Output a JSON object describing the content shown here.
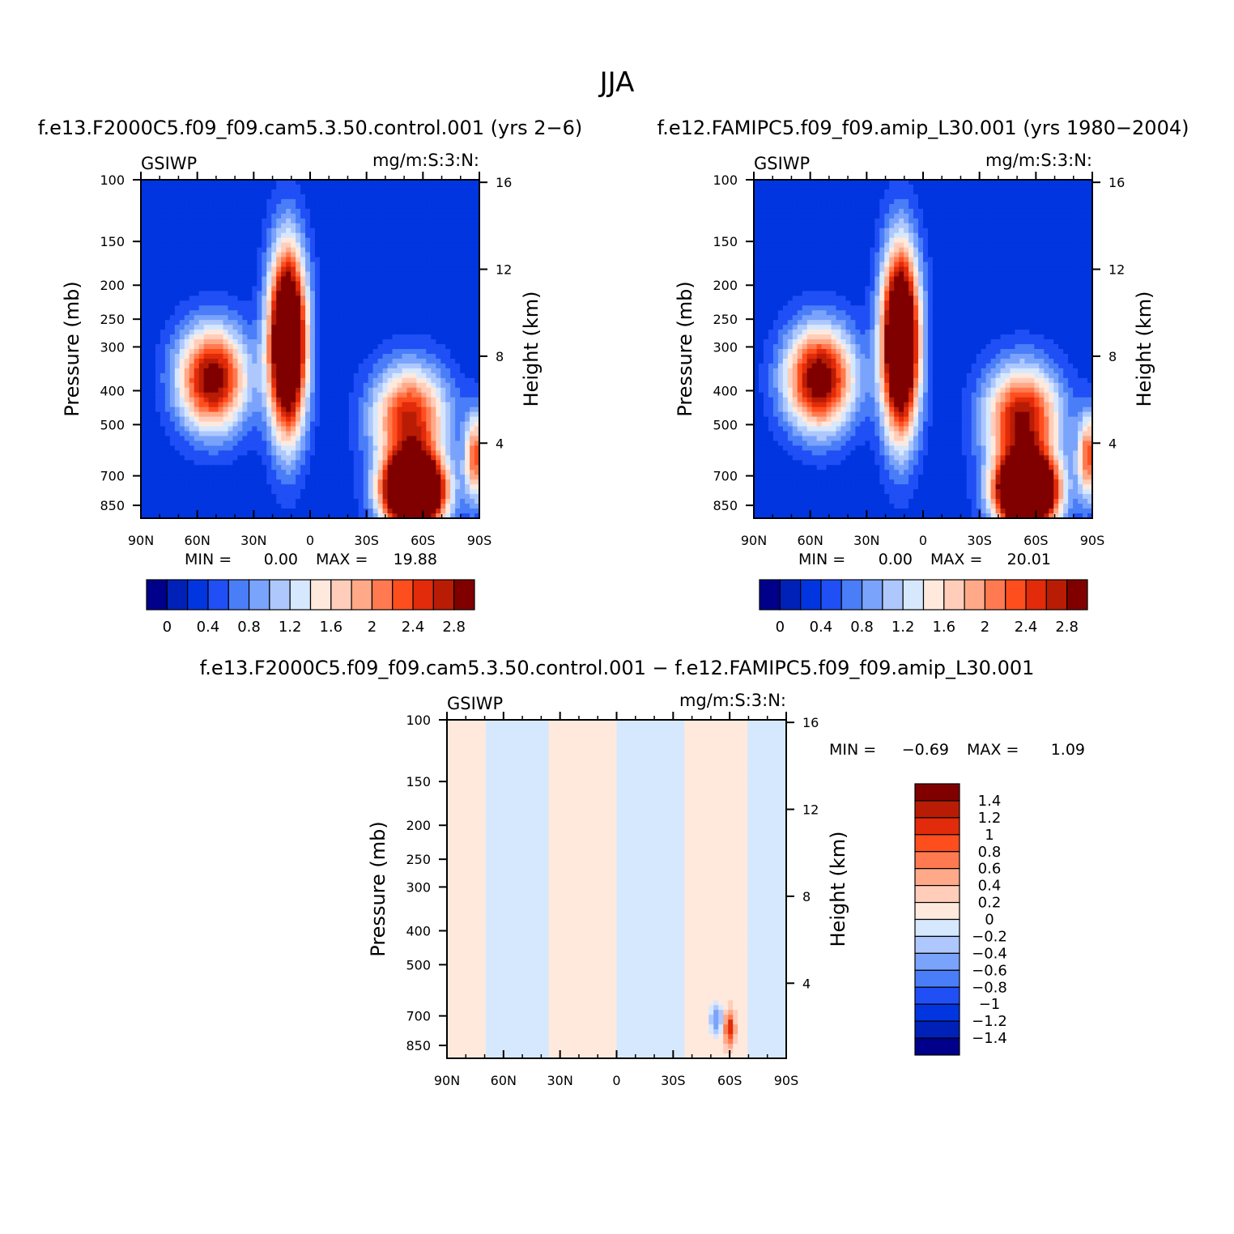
{
  "figure": {
    "title": "JJA",
    "colors": {
      "abs_palette": [
        "#00008b",
        "#0021b8",
        "#0035e0",
        "#1f4ff5",
        "#4a7df8",
        "#7aa3fb",
        "#aec8fd",
        "#d6e8fe",
        "#ffe9dd",
        "#ffcdb9",
        "#ffa988",
        "#ff7a50",
        "#ff4e1e",
        "#e12b0a",
        "#b91c04",
        "#800000"
      ],
      "diff_palette": [
        "#00008b",
        "#0021b8",
        "#0035e0",
        "#1f4ff5",
        "#4a7df8",
        "#7aa3fb",
        "#aec8fd",
        "#d6e8fe",
        "#ffe9dd",
        "#ffcdb9",
        "#ffa988",
        "#ff7a50",
        "#ff4e1e",
        "#e12b0a",
        "#b91c04",
        "#800000"
      ]
    }
  },
  "panels": [
    {
      "title": "f.e13.F2000C5.f09_f09.cam5.3.50.control.001  (yrs 2−6)",
      "left_label": "GSIWP",
      "right_label": "mg/m:S:3:N:",
      "min_label": "MIN =",
      "min_value": "0.00",
      "max_label": "MAX =",
      "max_value": "19.88",
      "colorbar_labels": [
        "0",
        "0.4",
        "0.8",
        "1.2",
        "1.6",
        "2",
        "2.4",
        "2.8"
      ]
    },
    {
      "title": "f.e12.FAMIPC5.f09_f09.amip_L30.001  (yrs 1980−2004)",
      "left_label": "GSIWP",
      "right_label": "mg/m:S:3:N:",
      "min_label": "MIN =",
      "min_value": "0.00",
      "max_label": "MAX =",
      "max_value": "20.01",
      "colorbar_labels": [
        "0",
        "0.4",
        "0.8",
        "1.2",
        "1.6",
        "2",
        "2.4",
        "2.8"
      ]
    },
    {
      "title": "f.e13.F2000C5.f09_f09.cam5.3.50.control.001  −  f.e12.FAMIPC5.f09_f09.amip_L30.001",
      "left_label": "GSIWP",
      "right_label": "mg/m:S:3:N:",
      "min_label": "MIN =",
      "min_value": "−0.69",
      "max_label": "MAX =",
      "max_value": "1.09",
      "colorbar_labels": [
        "1.4",
        "1.2",
        "1",
        "0.8",
        "0.6",
        "0.4",
        "0.2",
        "0",
        "−0.2",
        "−0.4",
        "−0.6",
        "−0.8",
        "−1",
        "−1.2",
        "−1.4"
      ]
    }
  ],
  "chart_data": {
    "type": "heatmap",
    "title": "JJA",
    "variable": "GSIWP",
    "units": "mg/m:S:3:N:",
    "xlabel": "",
    "ylabel": "Pressure (mb)",
    "y2label": "Height (km)",
    "x_ticks": [
      "90N",
      "60N",
      "30N",
      "0",
      "30S",
      "60S",
      "90S"
    ],
    "y_ticks": [
      100,
      150,
      200,
      250,
      300,
      400,
      500,
      700,
      850
    ],
    "y2_ticks": [
      16,
      12,
      8,
      4
    ],
    "y_scale": "log",
    "ylim": [
      100,
      925
    ],
    "x_range_lat": [
      90,
      -90
    ],
    "abs_levels": [
      0,
      0.2,
      0.4,
      0.6,
      0.8,
      1.0,
      1.2,
      1.4,
      1.6,
      1.8,
      2.0,
      2.2,
      2.4,
      2.6,
      2.8
    ],
    "diff_levels": [
      -1.4,
      -1.2,
      -1.0,
      -0.8,
      -0.6,
      -0.4,
      -0.2,
      0,
      0.2,
      0.4,
      0.6,
      0.8,
      1.0,
      1.2,
      1.4
    ],
    "features": {
      "control": [
        {
          "lat": 52,
          "p": 370,
          "lat_spread": 13,
          "p_spread_log": 0.24,
          "amp": 2.8
        },
        {
          "lat": 12,
          "p": 290,
          "lat_spread": 7,
          "p_spread_log": 0.42,
          "amp": 4.5
        },
        {
          "lat": -55,
          "p": 780,
          "lat_spread": 11,
          "p_spread_log": 0.16,
          "amp": 6.0
        },
        {
          "lat": -53,
          "p": 480,
          "lat_spread": 14,
          "p_spread_log": 0.24,
          "amp": 2.4
        },
        {
          "lat": -88,
          "p": 620,
          "lat_spread": 4,
          "p_spread_log": 0.2,
          "amp": 2.0
        }
      ],
      "amip": [
        {
          "lat": 55,
          "p": 370,
          "lat_spread": 13,
          "p_spread_log": 0.24,
          "amp": 2.9
        },
        {
          "lat": 12,
          "p": 290,
          "lat_spread": 7,
          "p_spread_log": 0.42,
          "amp": 4.5
        },
        {
          "lat": -55,
          "p": 780,
          "lat_spread": 11,
          "p_spread_log": 0.16,
          "amp": 6.0
        },
        {
          "lat": -53,
          "p": 480,
          "lat_spread": 14,
          "p_spread_log": 0.24,
          "amp": 2.6
        },
        {
          "lat": -88,
          "p": 620,
          "lat_spread": 4,
          "p_spread_log": 0.2,
          "amp": 2.0
        }
      ],
      "difference": [
        {
          "lat": -60,
          "p": 760,
          "lat_spread": 2,
          "p_spread_log": 0.08,
          "amp": 1.09
        },
        {
          "lat": -53,
          "p": 720,
          "lat_spread": 2.5,
          "p_spread_log": 0.07,
          "amp": -0.69
        }
      ]
    }
  }
}
